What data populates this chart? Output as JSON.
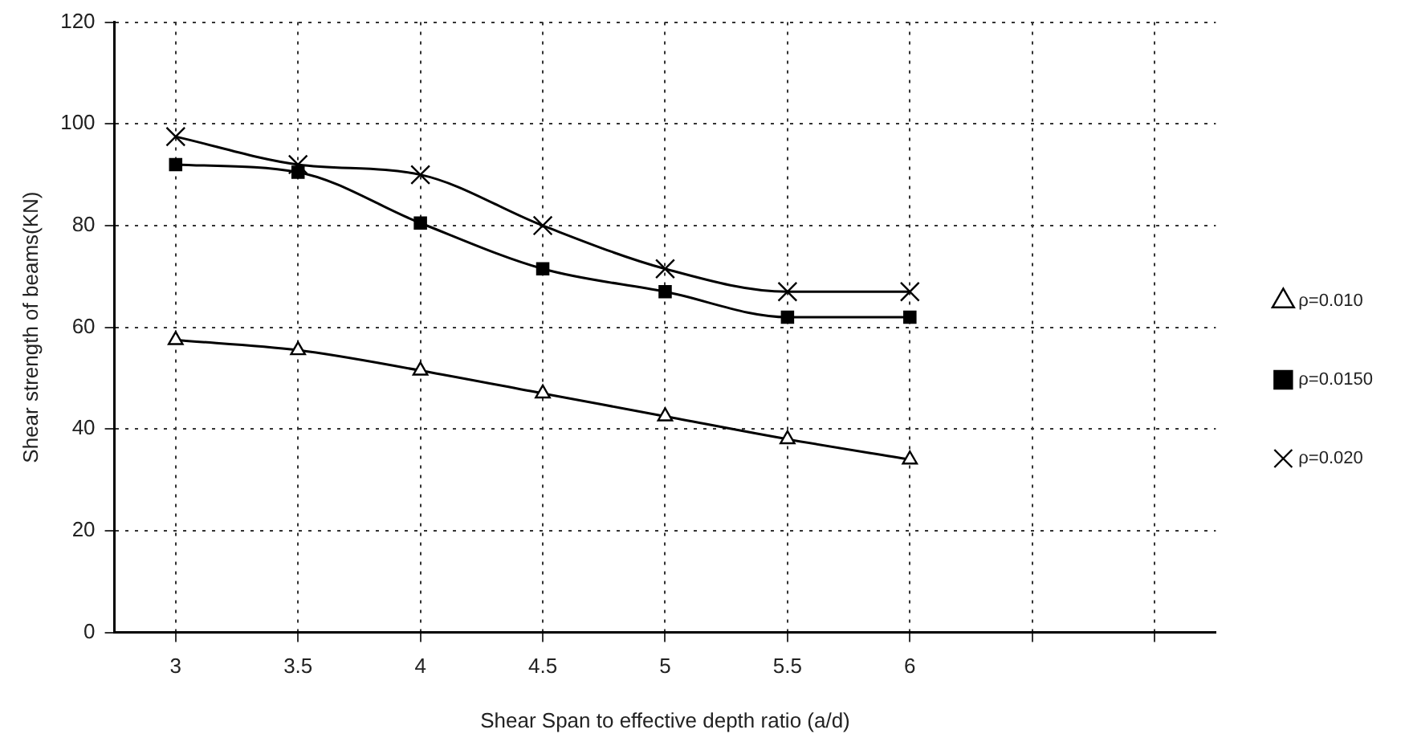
{
  "chart_data": {
    "type": "line",
    "xlabel": "Shear Span to effective depth ratio (a/d)",
    "ylabel": "Shear strength of beams(KN)",
    "categories": [
      "3",
      "3.5",
      "4",
      "4.5",
      "5",
      "5.5",
      "6",
      null,
      null
    ],
    "series": [
      {
        "name": "ρ=0.010",
        "color": "#000000",
        "marker": "triangle",
        "values": [
          57.5,
          55.5,
          51.5,
          47,
          42.5,
          38,
          34,
          null,
          null
        ]
      },
      {
        "name": "ρ=0.0150",
        "color": "#000000",
        "marker": "square",
        "values": [
          92,
          90.5,
          80.5,
          71.5,
          67,
          62,
          62,
          null,
          null
        ]
      },
      {
        "name": "ρ=0.020",
        "color": "#000000",
        "marker": "cross",
        "values": [
          97.5,
          92,
          90,
          80,
          71.5,
          67,
          67,
          null,
          null
        ]
      }
    ],
    "ylim": [
      0,
      120
    ],
    "yticks": [
      0,
      20,
      40,
      60,
      80,
      100,
      120
    ],
    "grid": true,
    "legend": "right",
    "line_style": "solid"
  }
}
